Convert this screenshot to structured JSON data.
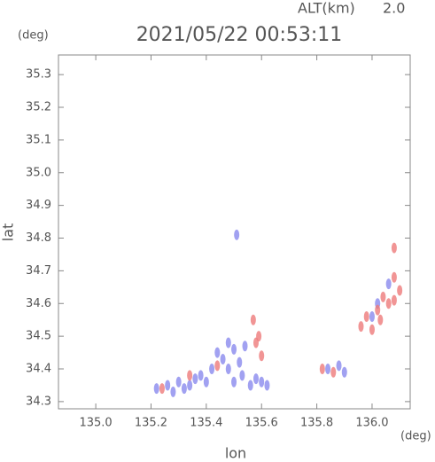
{
  "chart_data": {
    "type": "scatter",
    "altitude_label": "ALT(km)",
    "altitude_value": "2.0",
    "title": "2021/05/22 00:53:11",
    "y_unit": "(deg)",
    "x_unit": "(deg)",
    "xlabel": "lon",
    "ylabel": "lat",
    "xlim": [
      134.865,
      136.138
    ],
    "ylim": [
      34.278,
      35.36
    ],
    "xticks": [
      {
        "value": 135,
        "label": "135.0"
      },
      135.2,
      135.4,
      135.6,
      135.8,
      {
        "value": 136,
        "label": "136.0"
      }
    ],
    "yticks": [
      34.3,
      34.4,
      34.5,
      34.6,
      34.7,
      34.8,
      34.9,
      {
        "value": 35,
        "label": "35.0"
      },
      35.1,
      35.2,
      35.3
    ],
    "series": [
      {
        "color": "#8a8aee",
        "x": [
          135.22,
          135.26,
          135.28,
          135.3,
          135.32,
          135.34,
          135.36,
          135.38,
          135.4,
          135.42,
          135.44,
          135.46,
          135.48,
          135.48,
          135.5,
          135.5,
          135.52,
          135.53,
          135.54,
          135.56,
          135.58,
          135.6,
          135.62,
          135.51,
          135.84,
          135.88,
          135.9,
          136.0,
          136.02,
          136.06
        ],
        "y": [
          34.34,
          34.35,
          34.33,
          34.36,
          34.34,
          34.35,
          34.37,
          34.38,
          34.36,
          34.4,
          34.45,
          34.43,
          34.48,
          34.4,
          34.36,
          34.46,
          34.42,
          34.38,
          34.47,
          34.35,
          34.37,
          34.36,
          34.35,
          34.81,
          34.4,
          34.41,
          34.39,
          34.56,
          34.6,
          34.66
        ]
      },
      {
        "color": "#ee7a7a",
        "x": [
          135.24,
          135.34,
          135.44,
          135.58,
          135.6,
          135.59,
          135.57,
          135.82,
          135.86,
          135.96,
          135.98,
          136.0,
          136.02,
          136.04,
          136.06,
          136.08,
          136.1,
          136.08,
          136.08,
          136.03
        ],
        "y": [
          34.34,
          34.38,
          34.41,
          34.48,
          34.44,
          34.5,
          34.55,
          34.4,
          34.39,
          34.53,
          34.56,
          34.52,
          34.58,
          34.62,
          34.6,
          34.61,
          34.64,
          34.68,
          34.77,
          34.55
        ]
      }
    ]
  }
}
